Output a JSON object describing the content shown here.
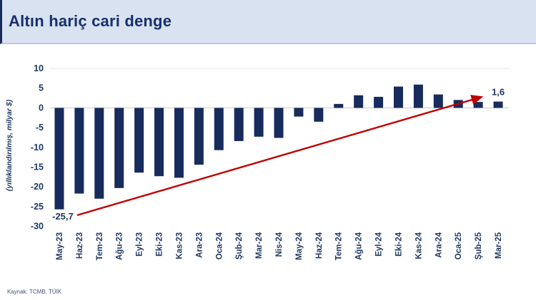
{
  "header": {
    "title": "Altın hariç cari denge"
  },
  "footer": {
    "source": "Kaynak: TCMB, TÜİK"
  },
  "chart_data": {
    "type": "bar",
    "title": "Altın hariç cari denge",
    "ylabel": "(yıllıklandırılmış, milyar $)",
    "xlabel": "",
    "categories": [
      "May-23",
      "Haz-23",
      "Tem-23",
      "Ağu-23",
      "Eyl-23",
      "Eki-23",
      "Kas-23",
      "Ara-23",
      "Oca-24",
      "Şub-24",
      "Mar-24",
      "Nis-24",
      "May-24",
      "Haz-24",
      "Tem-24",
      "Ağu-24",
      "Eyl-24",
      "Eki-24",
      "Kas-24",
      "Ara-24",
      "Oca-25",
      "Şub-25",
      "Mar-25"
    ],
    "values": [
      -25.7,
      -21.7,
      -23.0,
      -20.3,
      -16.4,
      -17.3,
      -17.7,
      -14.4,
      -10.7,
      -8.4,
      -7.3,
      -7.6,
      -2.2,
      -3.5,
      1.0,
      3.2,
      2.8,
      5.4,
      5.9,
      3.4,
      2.0,
      1.5,
      1.6
    ],
    "ylim": [
      -30,
      10
    ],
    "ytick_step": 5,
    "grid": "zero-axis and top line only",
    "legend": "none",
    "bar_color": "#172b5c",
    "annotations": [
      {
        "category": "May-23",
        "label": "-25,7",
        "position": "below-bar"
      },
      {
        "category": "Mar-25",
        "label": "1,6",
        "position": "above-bar"
      }
    ],
    "trend_arrow": {
      "color": "#c00000",
      "from_category": "May-23",
      "to_category": "Mar-25",
      "direction": "up"
    }
  },
  "colors": {
    "header_bg": "#d9e2f0",
    "header_border": "#b9c7de",
    "title_text": "#16306e",
    "axis_text": "#1f3864",
    "bar": "#172b5c",
    "arrow": "#c00000",
    "zero_line": "#c9c9c9",
    "top_line": "#e4e4e4"
  }
}
